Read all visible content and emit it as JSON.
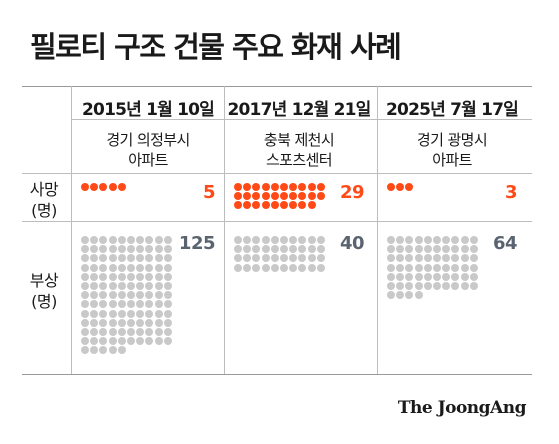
{
  "title": "필로티 구조 건물 주요 화재 사례",
  "row_labels": {
    "deaths": [
      "사망",
      "(명)"
    ],
    "injuries": [
      "부상",
      "(명)"
    ]
  },
  "colors": {
    "death_dot": "#ff4a17",
    "death_count": "#ff4a17",
    "injury_dot": "#c9c9c9",
    "injury_count": "#5a6470"
  },
  "columns": [
    {
      "date": "2015년 1월 10일",
      "place": [
        "경기 의정부시",
        "아파트"
      ],
      "deaths": 5,
      "injuries": 125,
      "deaths_label": "5",
      "injuries_label": "125"
    },
    {
      "date": "2017년 12월 21일",
      "place": [
        "충북 제천시",
        "스포츠센터"
      ],
      "deaths": 29,
      "injuries": 40,
      "deaths_label": "29",
      "injuries_label": "40"
    },
    {
      "date": "2025년 7월 17일",
      "place": [
        "경기 광명시",
        "아파트"
      ],
      "deaths": 3,
      "injuries": 64,
      "deaths_label": "3",
      "injuries_label": "64"
    }
  ],
  "brand": "The JoongAng"
}
